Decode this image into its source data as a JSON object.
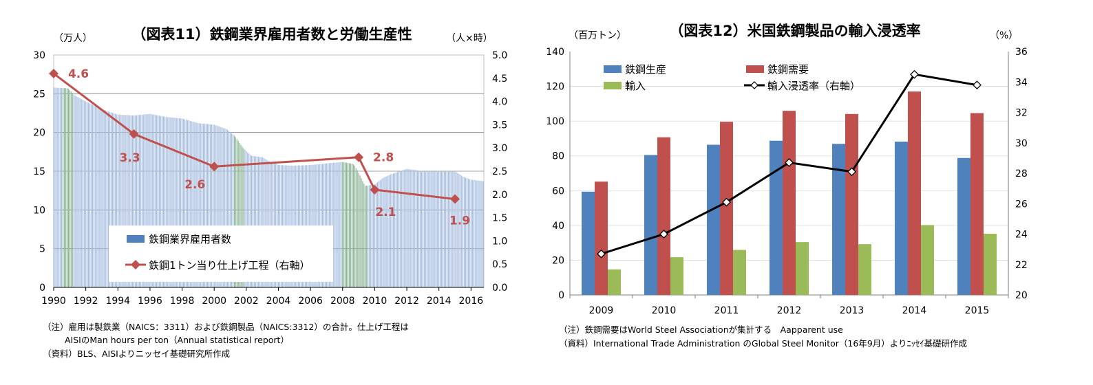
{
  "chart_data": [
    {
      "type": "bar",
      "title": "（図表11）鉄鋼業界雇用者数と労働生産性",
      "ylabel_left": "（万人）",
      "ylabel_right": "（人×時）",
      "ylim_left": [
        0,
        30
      ],
      "ylim_right": [
        0.0,
        5.0
      ],
      "yticks_left": [
        "0",
        "5",
        "10",
        "15",
        "20",
        "25",
        "30"
      ],
      "yticks_right": [
        "0.0",
        "0.5",
        "1.0",
        "1.5",
        "2.0",
        "2.5",
        "3.0",
        "3.5",
        "4.0",
        "4.5",
        "5.0"
      ],
      "xticks": [
        "1990",
        "1992",
        "1994",
        "1996",
        "1998",
        "2000",
        "2002",
        "2004",
        "2006",
        "2008",
        "2010",
        "2012",
        "2014",
        "2016"
      ],
      "xlim": [
        1990,
        2016.8
      ],
      "shaded_recessions": [
        [
          1990.5,
          1991.2
        ],
        [
          2001.2,
          2001.9
        ],
        [
          2007.95,
          2009.5
        ]
      ],
      "series": [
        {
          "name": "鉄鋼業界雇用者数",
          "kind": "bar",
          "axis": "left",
          "color": "#4f81bd",
          "keypoints": [
            [
              1990.0,
              25.8
            ],
            [
              1990.9,
              25.7
            ],
            [
              1991.3,
              24.8
            ],
            [
              1992.0,
              24.0
            ],
            [
              1993.0,
              23.0
            ],
            [
              1994.0,
              22.3
            ],
            [
              1995.0,
              22.2
            ],
            [
              1996.0,
              22.4
            ],
            [
              1997.0,
              22.0
            ],
            [
              1998.0,
              21.8
            ],
            [
              1999.0,
              21.2
            ],
            [
              2000.0,
              21.0
            ],
            [
              2000.8,
              20.4
            ],
            [
              2001.3,
              19.5
            ],
            [
              2001.8,
              18.0
            ],
            [
              2002.3,
              17.0
            ],
            [
              2003.0,
              16.8
            ],
            [
              2003.5,
              16.2
            ],
            [
              2004.0,
              15.8
            ],
            [
              2005.0,
              15.7
            ],
            [
              2006.0,
              15.8
            ],
            [
              2007.0,
              16.0
            ],
            [
              2008.0,
              16.2
            ],
            [
              2008.7,
              15.9
            ],
            [
              2009.0,
              14.8
            ],
            [
              2009.4,
              13.1
            ],
            [
              2010.0,
              13.3
            ],
            [
              2010.5,
              14.1
            ],
            [
              2011.0,
              14.6
            ],
            [
              2012.0,
              15.3
            ],
            [
              2013.0,
              15.0
            ],
            [
              2014.0,
              15.0
            ],
            [
              2015.0,
              15.0
            ],
            [
              2015.5,
              14.3
            ],
            [
              2016.0,
              13.9
            ],
            [
              2016.8,
              13.7
            ]
          ]
        },
        {
          "name": "鉄鋼1トン当り仕上げ工程（右軸）",
          "kind": "line",
          "axis": "right",
          "color": "#c0504d",
          "x": [
            1990,
            1995,
            2000,
            2009,
            2010,
            2015
          ],
          "values": [
            4.6,
            3.3,
            2.6,
            2.8,
            2.1,
            1.9
          ],
          "labels": [
            "4.6",
            "3.3",
            "2.6",
            "2.8",
            "2.1",
            "1.9"
          ],
          "label_positions": [
            "right",
            "below",
            "below",
            "right",
            "below",
            "below"
          ]
        }
      ]
    },
    {
      "type": "bar",
      "title": "（図表12）米国鉄鋼製品の輸入浸透率",
      "ylabel_left": "（百万トン）",
      "ylabel_right": "（%）",
      "ylim_left": [
        0,
        140
      ],
      "ylim_right": [
        20,
        36
      ],
      "yticks_left": [
        "0",
        "20",
        "40",
        "60",
        "80",
        "100",
        "120",
        "140"
      ],
      "yticks_right": [
        "20",
        "22",
        "24",
        "26",
        "28",
        "30",
        "32",
        "34",
        "36"
      ],
      "categories": [
        "2009",
        "2010",
        "2011",
        "2012",
        "2013",
        "2014",
        "2015"
      ],
      "series": [
        {
          "name": "鉄鋼生産",
          "kind": "bar",
          "axis": "left",
          "color": "#4f81bd",
          "values": [
            59.4,
            80.5,
            86.4,
            88.7,
            86.9,
            88.2,
            78.8
          ]
        },
        {
          "name": "鉄鋼需要",
          "kind": "bar",
          "axis": "left",
          "color": "#c0504d",
          "values": [
            65.2,
            90.7,
            99.6,
            105.9,
            104.1,
            117.0,
            104.6
          ]
        },
        {
          "name": "輸入",
          "kind": "bar",
          "axis": "left",
          "color": "#9bbb59",
          "values": [
            14.7,
            21.7,
            25.9,
            30.4,
            29.2,
            40.2,
            35.2
          ]
        },
        {
          "name": "輸入浸透率（右軸）",
          "kind": "line",
          "axis": "right",
          "color": "#000000",
          "values": [
            22.7,
            24.0,
            26.1,
            28.7,
            28.1,
            34.5,
            33.8
          ]
        }
      ]
    }
  ],
  "notes": {
    "left_note1": "（注）雇用は製鉄業（NAICS：3311）および鉄鋼製品（NAICS:3312）の合計。仕上げ工程は",
    "left_note2": "AISIのMan hours per ton（Annual statistical report）",
    "left_note3": "（資料）BLS、AISIよりニッセイ基礎研究所作成",
    "right_note1": "（注）鉄鋼需要はWorld Steel Associationが集計する　Aapparent use",
    "right_note2": "（資料）International Trade Administration のGlobal Steel Monitor（16年9月）よりﾆｯｾｲ基礎研作成"
  }
}
